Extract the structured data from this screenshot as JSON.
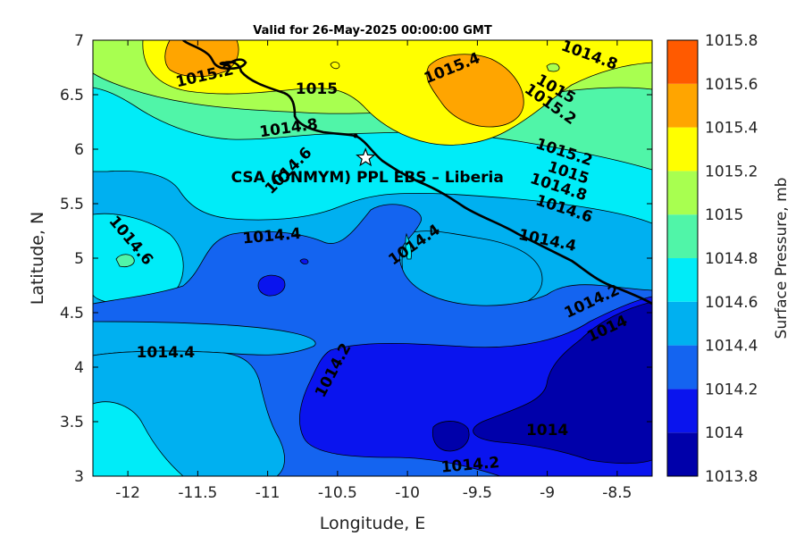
{
  "chart_data": {
    "type": "contour",
    "title": "Valid for 26-May-2025 00:00:00 GMT",
    "xlabel": "Longitude, E",
    "ylabel": "Latitude, N",
    "xlim": [
      -12.25,
      -8.25
    ],
    "ylim": [
      3,
      7
    ],
    "xticks": [
      -12,
      -11.5,
      -11,
      -10.5,
      -10,
      -9.5,
      -9,
      -8.5
    ],
    "yticks": [
      3,
      3.5,
      4,
      4.5,
      5,
      5.5,
      6,
      6.5,
      7
    ],
    "colorbar": {
      "label": "Surface Pressure, mb",
      "levels": [
        1013.8,
        1014,
        1014.2,
        1014.4,
        1014.6,
        1014.8,
        1015,
        1015.2,
        1015.4,
        1015.6,
        1015.8
      ],
      "tick_labels": [
        "1013.8",
        "1014",
        "1014.2",
        "1014.4",
        "1014.6",
        "1014.8",
        "1015",
        "1015.2",
        "1015.4",
        "1015.6",
        "1015.8"
      ],
      "colors": [
        "#0000aa",
        "#0a14ee",
        "#1464f0",
        "#00b0f0",
        "#00ecf8",
        "#50f5a8",
        "#a8ff50",
        "#ffff00",
        "#ffa500",
        "#ff5a00",
        "#ff0000"
      ]
    },
    "site": {
      "label": "CSA (ONMYM) PPL EBS  – Liberia",
      "lon": -10.3,
      "lat": 5.92
    },
    "contour_labels": [
      {
        "text": "1015.2",
        "lon": -11.45,
        "lat": 6.67,
        "angle": -13
      },
      {
        "text": "1015",
        "lon": -10.65,
        "lat": 6.55,
        "angle": 0
      },
      {
        "text": "1014.8",
        "lon": -10.85,
        "lat": 6.19,
        "angle": -8
      },
      {
        "text": "1014.6",
        "lon": -10.85,
        "lat": 5.8,
        "angle": -45
      },
      {
        "text": "1015.4",
        "lon": -9.68,
        "lat": 6.74,
        "angle": -22
      },
      {
        "text": "1014.8",
        "lon": -8.7,
        "lat": 6.86,
        "angle": 20
      },
      {
        "text": "1015",
        "lon": -8.94,
        "lat": 6.55,
        "angle": 30
      },
      {
        "text": "1015.2",
        "lon": -8.98,
        "lat": 6.41,
        "angle": 35
      },
      {
        "text": "1015.2",
        "lon": -8.88,
        "lat": 5.97,
        "angle": 18
      },
      {
        "text": "1015",
        "lon": -8.85,
        "lat": 5.78,
        "angle": 18
      },
      {
        "text": "1014.8",
        "lon": -8.92,
        "lat": 5.65,
        "angle": 18
      },
      {
        "text": "1014.6",
        "lon": -8.88,
        "lat": 5.45,
        "angle": 18
      },
      {
        "text": "1014.4",
        "lon": -9.0,
        "lat": 5.16,
        "angle": 12
      },
      {
        "text": "1014.6",
        "lon": -11.98,
        "lat": 5.16,
        "angle": 50
      },
      {
        "text": "1014.4",
        "lon": -10.97,
        "lat": 5.2,
        "angle": -5
      },
      {
        "text": "1014.4",
        "lon": -9.95,
        "lat": 5.12,
        "angle": -35
      },
      {
        "text": "1014.2",
        "lon": -8.68,
        "lat": 4.6,
        "angle": -25
      },
      {
        "text": "1014",
        "lon": -8.57,
        "lat": 4.35,
        "angle": -25
      },
      {
        "text": "1014.4",
        "lon": -11.73,
        "lat": 4.13,
        "angle": 0
      },
      {
        "text": "1014.2",
        "lon": -10.53,
        "lat": 3.97,
        "angle": -62
      },
      {
        "text": "1014",
        "lon": -9.0,
        "lat": 3.42,
        "angle": 0
      },
      {
        "text": "1014.2",
        "lon": -9.55,
        "lat": 3.1,
        "angle": -5
      }
    ]
  }
}
